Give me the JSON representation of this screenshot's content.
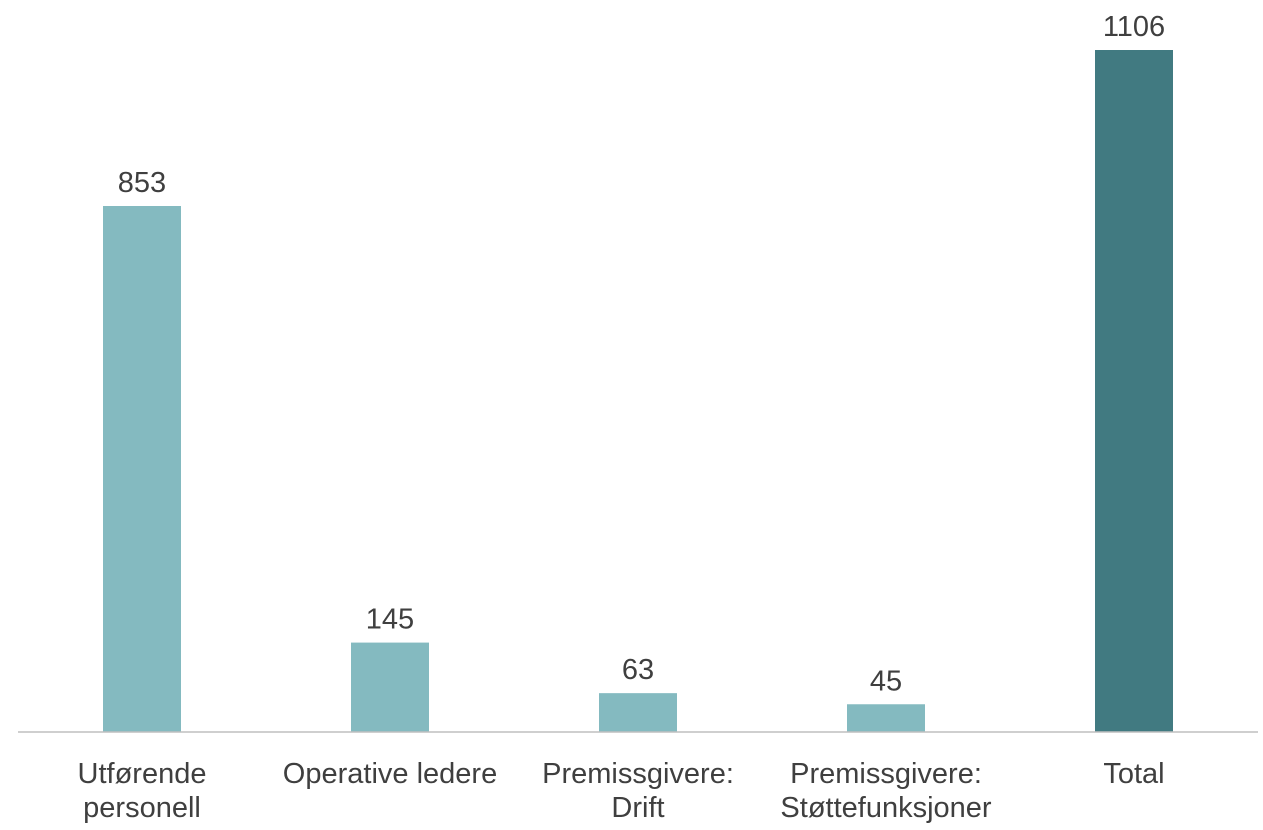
{
  "chart_data": {
    "type": "bar",
    "categories": [
      [
        "Utførende",
        "personell"
      ],
      [
        "Operative ledere"
      ],
      [
        "Premissgivere:",
        "Drift"
      ],
      [
        "Premissgivere:",
        "Støttefunksjoner"
      ],
      [
        "Total"
      ]
    ],
    "values": [
      853,
      145,
      63,
      45,
      1106
    ],
    "data_labels": [
      "853",
      "145",
      "63",
      "45",
      "1106"
    ],
    "title": "",
    "xlabel": "",
    "ylabel": "",
    "ylim": [
      0,
      1106
    ],
    "grid": false,
    "legend": "none",
    "colors": {
      "default_bar": "#84BAC0",
      "highlight_bar": "#417A81",
      "axis": "#BFBFBF",
      "text": "#3F3F3F"
    },
    "highlight_index": 4
  }
}
